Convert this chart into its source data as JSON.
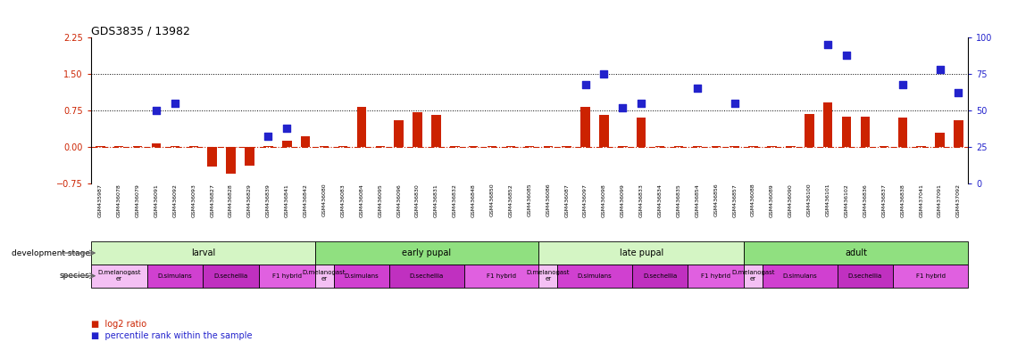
{
  "title": "GDS3835 / 13982",
  "samples": [
    "GSM435987",
    "GSM436078",
    "GSM436079",
    "GSM436091",
    "GSM436092",
    "GSM436093",
    "GSM436827",
    "GSM436828",
    "GSM436829",
    "GSM436839",
    "GSM436841",
    "GSM436842",
    "GSM436080",
    "GSM436083",
    "GSM436084",
    "GSM436095",
    "GSM436096",
    "GSM436830",
    "GSM436831",
    "GSM436832",
    "GSM436848",
    "GSM436850",
    "GSM436852",
    "GSM436085",
    "GSM436086",
    "GSM436087",
    "GSM436097",
    "GSM436098",
    "GSM436099",
    "GSM436833",
    "GSM436834",
    "GSM436835",
    "GSM436854",
    "GSM436856",
    "GSM436857",
    "GSM436088",
    "GSM436089",
    "GSM436090",
    "GSM436100",
    "GSM436101",
    "GSM436102",
    "GSM436836",
    "GSM436837",
    "GSM436838",
    "GSM437041",
    "GSM437091",
    "GSM437092"
  ],
  "log2_ratio": [
    0.02,
    0.02,
    0.02,
    0.08,
    0.02,
    0.02,
    -0.4,
    -0.55,
    -0.38,
    0.02,
    0.12,
    0.22,
    0.02,
    0.02,
    0.82,
    0.02,
    0.55,
    0.72,
    0.65,
    0.02,
    0.02,
    0.02,
    0.02,
    0.02,
    0.02,
    0.02,
    0.82,
    0.65,
    0.02,
    0.6,
    0.02,
    0.02,
    0.02,
    0.02,
    0.02,
    0.02,
    0.02,
    0.02,
    0.68,
    0.92,
    0.62,
    0.62,
    0.02,
    0.6,
    0.02,
    0.3,
    0.55
  ],
  "percentile": [
    null,
    null,
    null,
    50,
    55,
    null,
    null,
    null,
    null,
    32,
    38,
    null,
    null,
    null,
    null,
    null,
    null,
    null,
    null,
    null,
    null,
    null,
    null,
    null,
    null,
    null,
    68,
    75,
    52,
    55,
    null,
    null,
    65,
    null,
    55,
    null,
    null,
    null,
    null,
    95,
    88,
    null,
    null,
    68,
    null,
    78,
    62
  ],
  "dev_stages": [
    {
      "label": "larval",
      "start": 0,
      "end": 12,
      "color": "#d4f5c4"
    },
    {
      "label": "early pupal",
      "start": 12,
      "end": 24,
      "color": "#90e080"
    },
    {
      "label": "late pupal",
      "start": 24,
      "end": 35,
      "color": "#d4f5c4"
    },
    {
      "label": "adult",
      "start": 35,
      "end": 47,
      "color": "#90e080"
    }
  ],
  "species_groups": [
    {
      "label": "D.melanogast\ner",
      "start": 0,
      "end": 3,
      "color": "#f4c0f4"
    },
    {
      "label": "D.simulans",
      "start": 3,
      "end": 6,
      "color": "#d040d0"
    },
    {
      "label": "D.sechellia",
      "start": 6,
      "end": 9,
      "color": "#c030c0"
    },
    {
      "label": "F1 hybrid",
      "start": 9,
      "end": 12,
      "color": "#e060e0"
    },
    {
      "label": "D.melanogast\ner",
      "start": 12,
      "end": 13,
      "color": "#f4c0f4"
    },
    {
      "label": "D.simulans",
      "start": 13,
      "end": 16,
      "color": "#d040d0"
    },
    {
      "label": "D.sechellia",
      "start": 16,
      "end": 20,
      "color": "#c030c0"
    },
    {
      "label": "F1 hybrid",
      "start": 20,
      "end": 24,
      "color": "#e060e0"
    },
    {
      "label": "D.melanogast\ner",
      "start": 24,
      "end": 25,
      "color": "#f4c0f4"
    },
    {
      "label": "D.simulans",
      "start": 25,
      "end": 29,
      "color": "#d040d0"
    },
    {
      "label": "D.sechellia",
      "start": 29,
      "end": 32,
      "color": "#c030c0"
    },
    {
      "label": "F1 hybrid",
      "start": 32,
      "end": 35,
      "color": "#e060e0"
    },
    {
      "label": "D.melanogast\ner",
      "start": 35,
      "end": 36,
      "color": "#f4c0f4"
    },
    {
      "label": "D.simulans",
      "start": 36,
      "end": 40,
      "color": "#d040d0"
    },
    {
      "label": "D.sechellia",
      "start": 40,
      "end": 43,
      "color": "#c030c0"
    },
    {
      "label": "F1 hybrid",
      "start": 43,
      "end": 47,
      "color": "#e060e0"
    }
  ],
  "ylim_left": [
    -0.75,
    2.25
  ],
  "ylim_right": [
    0,
    100
  ],
  "yticks_left": [
    -0.75,
    0,
    0.75,
    1.5,
    2.25
  ],
  "yticks_right": [
    0,
    25,
    50,
    75,
    100
  ],
  "hline_y": [
    0.75,
    1.5
  ],
  "bar_color": "#cc2200",
  "dot_color": "#2222cc",
  "bar_width": 0.5,
  "dot_size": 35,
  "bg_color": "#ffffff"
}
